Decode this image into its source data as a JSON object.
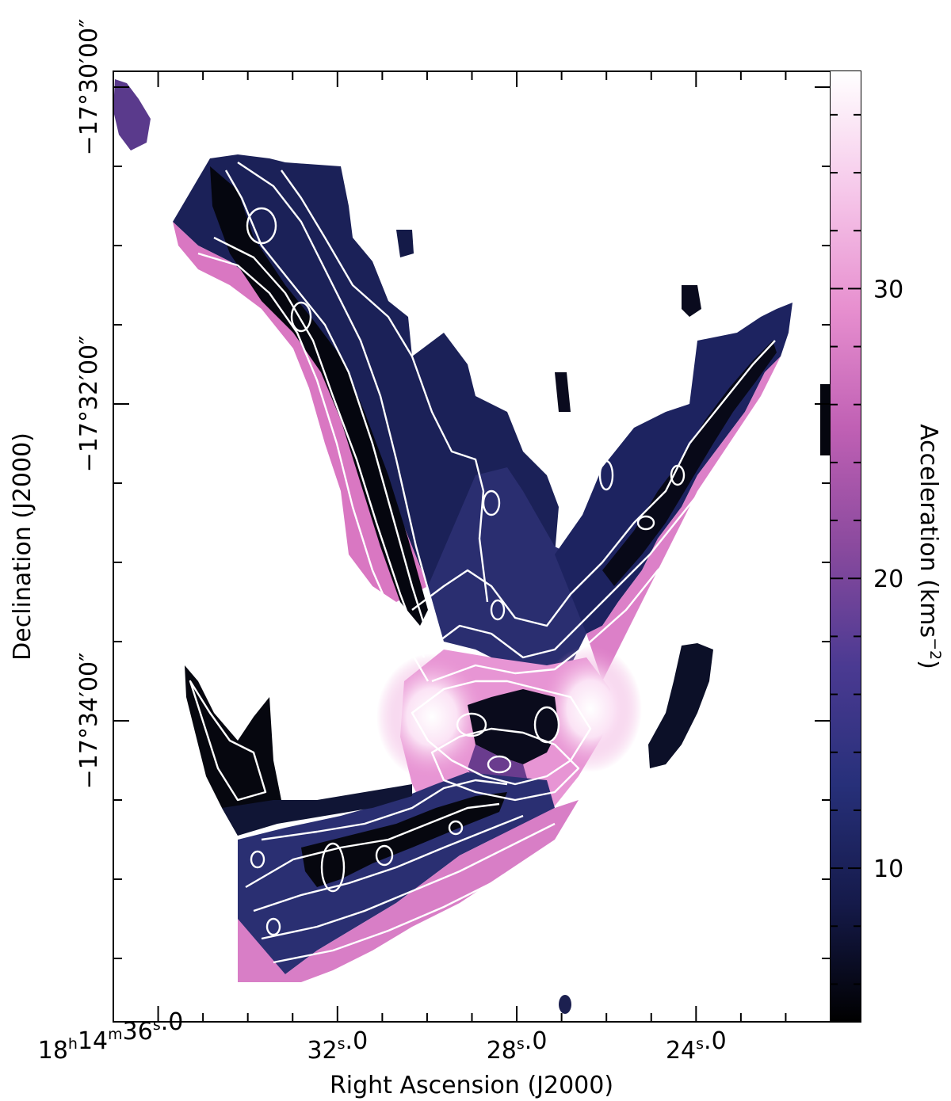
{
  "chart_data": {
    "type": "heatmap",
    "title": "",
    "xlabel": "Right Ascension (J2000)",
    "ylabel": "Declination (J2000)",
    "colorbar": {
      "label": "Acceleration (kms",
      "label_exponent": "−2",
      "label_close": ")",
      "range": [
        4.7,
        37.5
      ],
      "ticks": [
        {
          "value": 10,
          "label": "10"
        },
        {
          "value": 20,
          "label": "20"
        },
        {
          "value": 30,
          "label": "30"
        }
      ],
      "colormap": [
        "#000000",
        "#151a4a",
        "#27307a",
        "#4b3a92",
        "#8a4a9e",
        "#c060b4",
        "#e78fcf",
        "#f6c8ea",
        "#ffffff"
      ]
    },
    "x_ticks": [
      {
        "value_s": 36.0,
        "h": "18",
        "m": "14",
        "s": "36",
        "frac": "0"
      },
      {
        "value_s": 32.0,
        "h": "",
        "m": "",
        "s": "32",
        "frac": "0"
      },
      {
        "value_s": 28.0,
        "h": "",
        "m": "",
        "s": "28",
        "frac": "0"
      },
      {
        "value_s": 24.0,
        "h": "",
        "m": "",
        "s": "24",
        "frac": "0"
      }
    ],
    "x_range_s": [
      37.0,
      21.0
    ],
    "y_ticks": [
      {
        "value_arcmin": -30,
        "label": "−17°30′00″"
      },
      {
        "value_arcmin": -32,
        "label": "−17°32′00″"
      },
      {
        "value_arcmin": -34,
        "label": "−17°34′00″"
      }
    ],
    "y_range_arcmin": [
      -29.9,
      -35.9
    ],
    "contour_color": "#ffffff",
    "background_color": "#ffffff"
  }
}
